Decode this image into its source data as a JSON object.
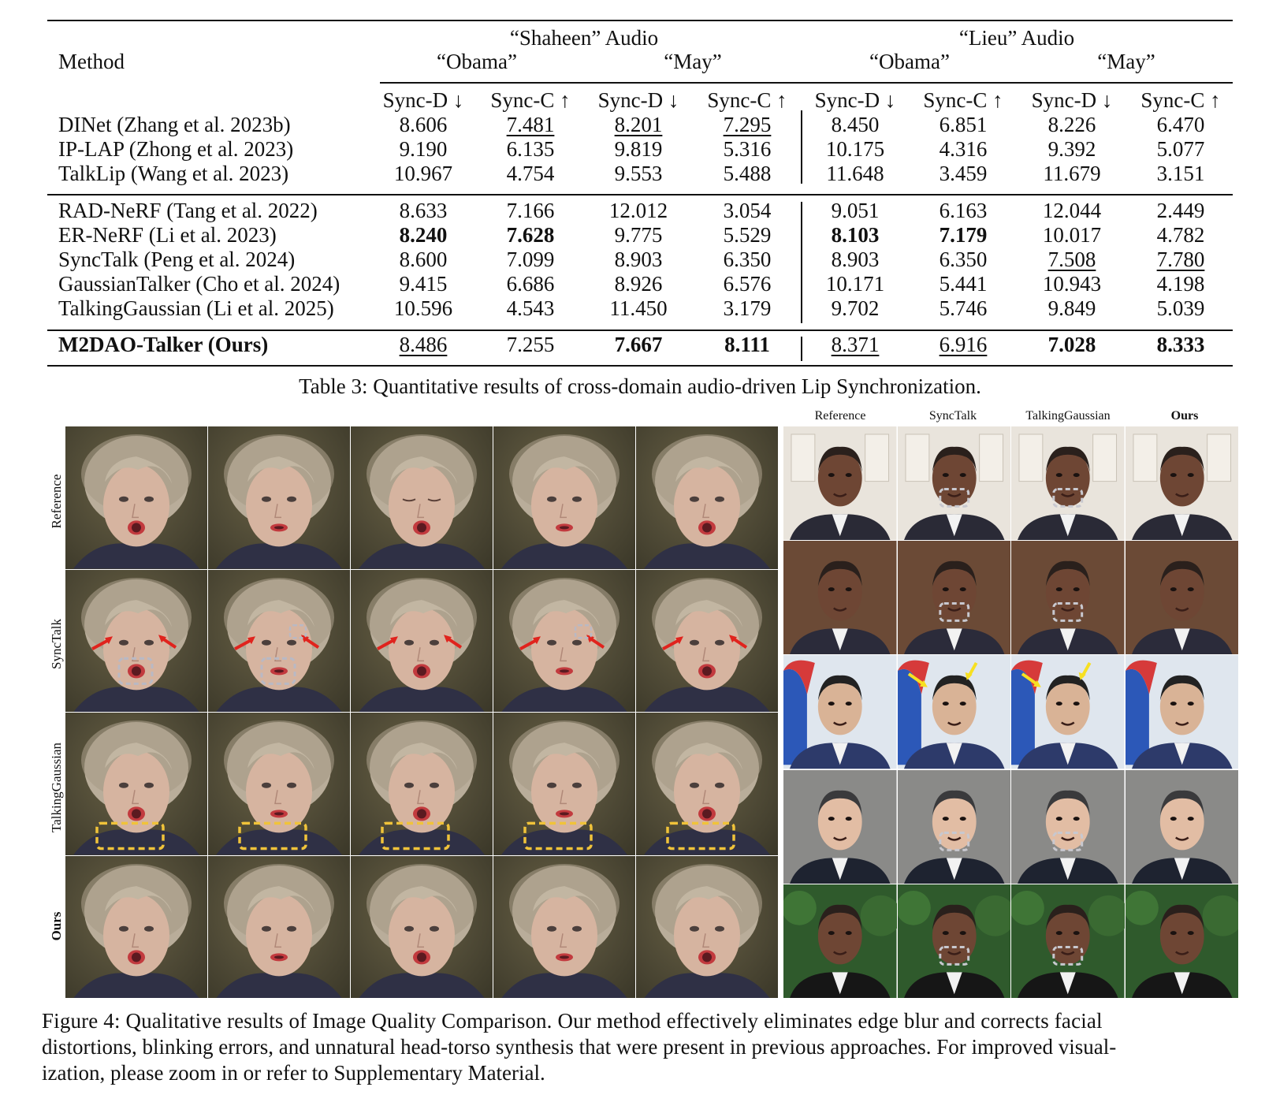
{
  "table": {
    "method_header": "Method",
    "group_headers": [
      "“Shaheen” Audio",
      "“Lieu” Audio"
    ],
    "sub_headers": [
      "“Obama”",
      "“May”",
      "“Obama”",
      "“May”"
    ],
    "metric_headers": [
      "Sync-D ↓",
      "Sync-C ↑",
      "Sync-D ↓",
      "Sync-C ↑",
      "Sync-D ↓",
      "Sync-C ↑",
      "Sync-D ↓",
      "Sync-C ↑"
    ],
    "rows": [
      {
        "method": "DINet (Zhang et al. 2023b)",
        "values": [
          "8.606",
          "7.481",
          "8.201",
          "7.295",
          "8.450",
          "6.851",
          "8.226",
          "6.470"
        ]
      },
      {
        "method": "IP-LAP (Zhong et al. 2023)",
        "values": [
          "9.190",
          "6.135",
          "9.819",
          "5.316",
          "10.175",
          "4.316",
          "9.392",
          "5.077"
        ]
      },
      {
        "method": "TalkLip (Wang et al. 2023)",
        "values": [
          "10.967",
          "4.754",
          "9.553",
          "5.488",
          "11.648",
          "3.459",
          "11.679",
          "3.151"
        ]
      },
      {
        "method": "RAD-NeRF (Tang et al. 2022)",
        "values": [
          "8.633",
          "7.166",
          "12.012",
          "3.054",
          "9.051",
          "6.163",
          "12.044",
          "2.449"
        ]
      },
      {
        "method": "ER-NeRF (Li et al. 2023)",
        "values": [
          "8.240",
          "7.628",
          "9.775",
          "5.529",
          "8.103",
          "7.179",
          "10.017",
          "4.782"
        ]
      },
      {
        "method": "SyncTalk (Peng et al. 2024)",
        "values": [
          "8.600",
          "7.099",
          "8.903",
          "6.350",
          "8.903",
          "6.350",
          "7.508",
          "7.780"
        ]
      },
      {
        "method": "GaussianTalker (Cho et al. 2024)",
        "values": [
          "9.415",
          "6.686",
          "8.926",
          "6.576",
          "10.171",
          "5.441",
          "10.943",
          "4.198"
        ]
      },
      {
        "method": "TalkingGaussian (Li et al. 2025)",
        "values": [
          "10.596",
          "4.543",
          "11.450",
          "3.179",
          "9.702",
          "5.746",
          "9.849",
          "5.039"
        ]
      },
      {
        "method": "M2DAO-Talker (Ours)",
        "values": [
          "8.486",
          "7.255",
          "7.667",
          "8.111",
          "8.371",
          "6.916",
          "7.028",
          "8.333"
        ]
      }
    ],
    "caption": "Table 3: Quantitative results of cross-domain audio-driven Lip Synchronization."
  },
  "figure": {
    "left_row_labels": [
      "Reference",
      "SyncTalk",
      "TalkingGaussian",
      "Ours"
    ],
    "right_col_headers": [
      "Reference",
      "SyncTalk",
      "TalkingGaussian",
      "Ours"
    ],
    "caption_lines": [
      "Figure 4: Qualitative results of Image Quality Comparison. Our method effectively eliminates edge blur and corrects facial",
      "distortions, blinking errors, and unnatural head-torso synthesis that were present in previous approaches. For improved visual-",
      "ization, please zoom in or refer to Supplementary Material."
    ]
  }
}
